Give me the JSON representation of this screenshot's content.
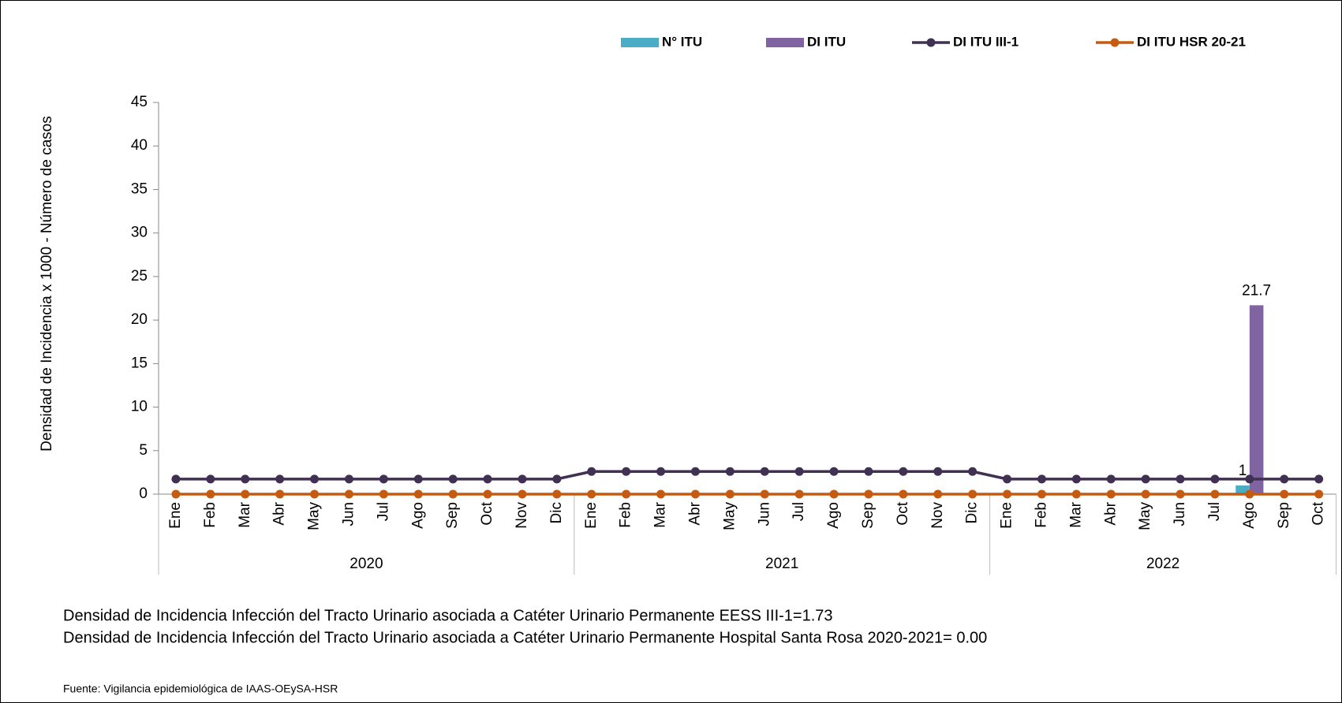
{
  "chart_data": {
    "type": "combo",
    "category_groups": [
      {
        "name": "2020",
        "categories": [
          "Ene",
          "Feb",
          "Mar",
          "Abr",
          "May",
          "Jun",
          "Jul",
          "Ago",
          "Sep",
          "Oct",
          "Nov",
          "Dic"
        ]
      },
      {
        "name": "2021",
        "categories": [
          "Ene",
          "Feb",
          "Mar",
          "Abr",
          "May",
          "Jun",
          "Jul",
          "Ago",
          "Sep",
          "Oct",
          "Nov",
          "Dic"
        ]
      },
      {
        "name": "2022",
        "categories": [
          "Ene",
          "Feb",
          "Mar",
          "Abr",
          "May",
          "Jun",
          "Jul",
          "Ago",
          "Sep",
          "Oct"
        ]
      }
    ],
    "ylabel": "Densidad de Incidencia x 1000 - Número de casos",
    "ylim": [
      0,
      45
    ],
    "yticks": [
      0,
      5,
      10,
      15,
      20,
      25,
      30,
      35,
      40,
      45
    ],
    "series": [
      {
        "name": "N° ITU",
        "type": "bar",
        "color": "#4bacc6",
        "values": [
          0,
          0,
          0,
          0,
          0,
          0,
          0,
          0,
          0,
          0,
          0,
          0,
          0,
          0,
          0,
          0,
          0,
          0,
          0,
          0,
          0,
          0,
          0,
          0,
          0,
          0,
          0,
          0,
          0,
          0,
          0,
          1,
          0,
          0
        ]
      },
      {
        "name": "DI ITU",
        "type": "bar",
        "color": "#8064a2",
        "values": [
          0,
          0,
          0,
          0,
          0,
          0,
          0,
          0,
          0,
          0,
          0,
          0,
          0,
          0,
          0,
          0,
          0,
          0,
          0,
          0,
          0,
          0,
          0,
          0,
          0,
          0,
          0,
          0,
          0,
          0,
          0,
          21.7,
          0,
          0
        ]
      },
      {
        "name": "DI ITU III-1",
        "type": "line",
        "color": "#403152",
        "values": [
          1.73,
          1.73,
          1.73,
          1.73,
          1.73,
          1.73,
          1.73,
          1.73,
          1.73,
          1.73,
          1.73,
          1.73,
          2.6,
          2.6,
          2.6,
          2.6,
          2.6,
          2.6,
          2.6,
          2.6,
          2.6,
          2.6,
          2.6,
          2.6,
          1.73,
          1.73,
          1.73,
          1.73,
          1.73,
          1.73,
          1.73,
          1.73,
          1.73,
          1.73
        ]
      },
      {
        "name": "DI ITU HSR 20-21",
        "type": "line",
        "color": "#c55a11",
        "values": [
          0,
          0,
          0,
          0,
          0,
          0,
          0,
          0,
          0,
          0,
          0,
          0,
          0,
          0,
          0,
          0,
          0,
          0,
          0,
          0,
          0,
          0,
          0,
          0,
          0,
          0,
          0,
          0,
          0,
          0,
          0,
          0,
          0,
          0
        ]
      }
    ],
    "notes": [
      "Densidad de Incidencia Infección del Tracto Urinario asociada a Catéter Urinario Permanente EESS III-1=1.73",
      "Densidad de Incidencia Infección del Tracto Urinario asociada a Catéter Urinario Permanente   Hospital Santa Rosa 2020-2021= 0.00"
    ],
    "source": "Fuente: Vigilancia epidemiológica de IAAS-OEySA-HSR"
  }
}
